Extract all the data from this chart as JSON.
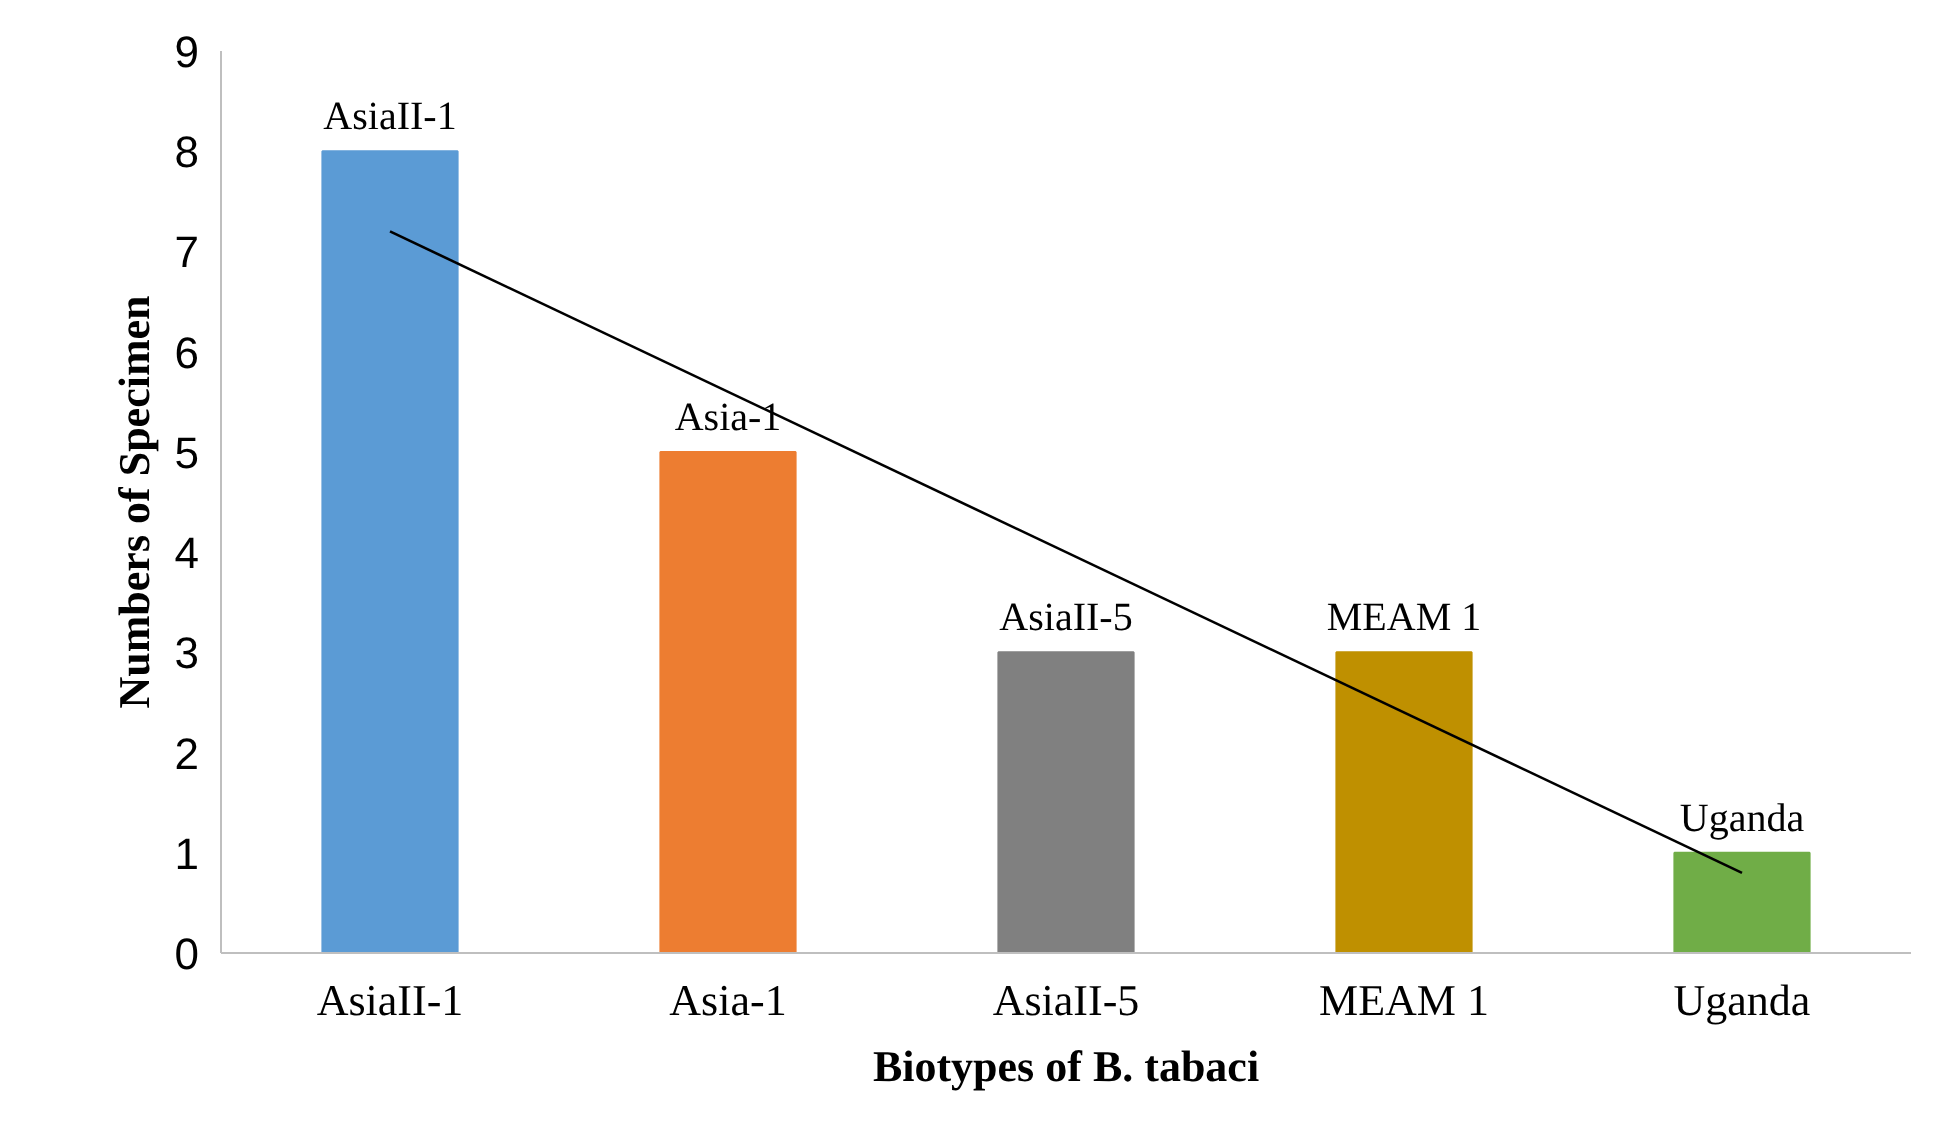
{
  "chart_data": {
    "type": "bar",
    "xlabel": "Biotypes of B. tabaci",
    "ylabel": "Numbers of Specimen",
    "categories": [
      "AsiaII-1",
      "Asia-1",
      "AsiaII-5",
      "MEAM 1",
      "Uganda"
    ],
    "series": [
      {
        "values": [
          8,
          5,
          3,
          3,
          1
        ],
        "colors": [
          "#5b9bd5",
          "#ed7d31",
          "#808080",
          "#bf9000",
          "#70ad47"
        ]
      },
      {
        "type": "line",
        "x": [
          "AsiaII-1",
          "Uganda"
        ],
        "values": [
          7.2,
          0.8
        ],
        "color": "#000000"
      }
    ],
    "annotations": [
      {
        "text": "AsiaII-1",
        "x": "AsiaII-1",
        "y": 8
      },
      {
        "text": "Asia-1",
        "x": "Asia-1",
        "y": 5
      },
      {
        "text": "AsiaII-5",
        "x": "AsiaII-5",
        "y": 3
      },
      {
        "text": "MEAM 1",
        "x": "MEAM 1",
        "y": 3
      },
      {
        "text": "Uganda",
        "x": "Uganda",
        "y": 1
      }
    ],
    "ylim": [
      0,
      9
    ],
    "yticks": [
      0,
      1,
      2,
      3,
      4,
      5,
      6,
      7,
      8,
      9
    ],
    "grid": false
  }
}
